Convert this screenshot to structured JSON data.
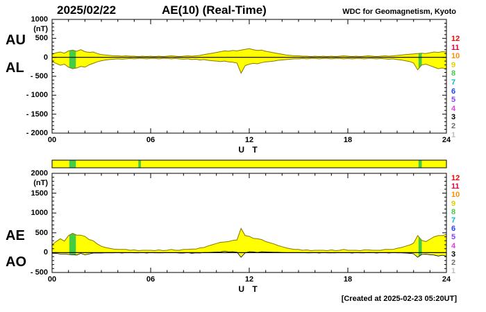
{
  "header": {
    "date": "2025/02/22",
    "title": "AE(10) (Real-Time)",
    "source": "WDC for Geomagnetism, Kyoto"
  },
  "footer": {
    "created": "[Created at 2025-02-23 05:20UT]"
  },
  "station_scale": {
    "values": [
      12,
      11,
      10,
      9,
      8,
      7,
      6,
      5,
      4,
      3,
      2,
      1
    ],
    "colors": [
      "#ff0000",
      "#e8003c",
      "#ff8c00",
      "#e0d000",
      "#44cc44",
      "#00bcd4",
      "#2040ff",
      "#8040ff",
      "#e040e0",
      "#000000",
      "#6e6e6e",
      "#bdbdbd"
    ]
  },
  "station_bar": {
    "base_color": "#ffff00",
    "segments": [
      {
        "t0": 1.05,
        "t1": 1.45,
        "color": "#44cc44"
      },
      {
        "t0": 5.25,
        "t1": 5.4,
        "color": "#44cc44"
      },
      {
        "t0": 22.3,
        "t1": 22.5,
        "color": "#44cc44"
      }
    ]
  },
  "chart_data": [
    {
      "type": "area",
      "render": "band",
      "title": "AU and AL auroral electrojet indices",
      "xlabel": "U T",
      "ylabel": "(nT)",
      "left_labels": [
        "AU",
        "AL"
      ],
      "xlim": [
        0,
        24
      ],
      "ylim": [
        -2000,
        1000
      ],
      "xticks": [
        0,
        6,
        12,
        18,
        24
      ],
      "xtick_labels": [
        "00",
        "06",
        "12",
        "18",
        "24"
      ],
      "yticks": [
        1000,
        500,
        0,
        -500,
        -1000,
        -1500,
        -2000
      ],
      "ytick_labels": [
        "1000",
        "500",
        "0",
        "- 500",
        "- 1000",
        "- 1500",
        "- 2000"
      ],
      "fill_color": "#ffff00",
      "alt_color": "#44cc44",
      "stroke_color": "#8a7500",
      "alt_ranges": [
        [
          1.05,
          1.45
        ],
        [
          22.3,
          22.5
        ]
      ],
      "x": [
        0,
        0.25,
        0.5,
        0.75,
        1,
        1.25,
        1.5,
        1.75,
        2,
        2.25,
        2.5,
        2.75,
        3,
        3.25,
        3.5,
        3.75,
        4,
        4.25,
        4.5,
        4.75,
        5,
        5.25,
        5.5,
        5.75,
        6,
        6.25,
        6.5,
        6.75,
        7,
        7.25,
        7.5,
        7.75,
        8,
        8.25,
        8.5,
        8.75,
        9,
        9.25,
        9.5,
        9.75,
        10,
        10.25,
        10.5,
        10.75,
        11,
        11.25,
        11.5,
        11.75,
        12,
        12.25,
        12.5,
        12.75,
        13,
        13.25,
        13.5,
        13.75,
        14,
        14.25,
        14.5,
        14.75,
        15,
        15.25,
        15.5,
        15.75,
        16,
        16.25,
        16.5,
        16.75,
        17,
        17.25,
        17.5,
        17.75,
        18,
        18.25,
        18.5,
        18.75,
        19,
        19.25,
        19.5,
        19.75,
        20,
        20.25,
        20.5,
        20.75,
        21,
        21.25,
        21.5,
        21.75,
        22,
        22.25,
        22.5,
        22.75,
        23,
        23.25,
        23.5,
        23.75,
        24
      ],
      "series": [
        {
          "name": "AU",
          "values": [
            80,
            120,
            140,
            110,
            170,
            190,
            160,
            200,
            150,
            130,
            140,
            100,
            70,
            60,
            50,
            40,
            40,
            30,
            40,
            30,
            30,
            20,
            30,
            20,
            30,
            20,
            30,
            20,
            30,
            40,
            30,
            20,
            30,
            40,
            30,
            40,
            50,
            70,
            90,
            110,
            130,
            150,
            170,
            160,
            180,
            170,
            190,
            210,
            230,
            200,
            180,
            190,
            160,
            140,
            120,
            100,
            80,
            60,
            50,
            40,
            40,
            30,
            30,
            20,
            30,
            20,
            30,
            20,
            30,
            20,
            30,
            40,
            30,
            20,
            30,
            20,
            30,
            40,
            30,
            20,
            30,
            40,
            30,
            40,
            50,
            60,
            70,
            80,
            90,
            100,
            110,
            100,
            120,
            140,
            130,
            150,
            140
          ]
        },
        {
          "name": "AL",
          "values": [
            -120,
            -160,
            -210,
            -180,
            -260,
            -300,
            -280,
            -240,
            -260,
            -200,
            -160,
            -120,
            -90,
            -70,
            -60,
            -50,
            -40,
            -50,
            -40,
            -30,
            -40,
            -30,
            -30,
            -40,
            -30,
            -30,
            -40,
            -30,
            -30,
            -40,
            -30,
            -40,
            -50,
            -40,
            -60,
            -50,
            -70,
            -60,
            -80,
            -90,
            -100,
            -110,
            -100,
            -120,
            -130,
            -150,
            -420,
            -220,
            -180,
            -160,
            -170,
            -140,
            -120,
            -110,
            -100,
            -80,
            -70,
            -60,
            -50,
            -40,
            -40,
            -30,
            -40,
            -30,
            -30,
            -40,
            -30,
            -30,
            -40,
            -30,
            -30,
            -40,
            -30,
            -40,
            -30,
            -30,
            -40,
            -30,
            -30,
            -40,
            -30,
            -40,
            -50,
            -40,
            -60,
            -70,
            -90,
            -110,
            -150,
            -330,
            -200,
            -180,
            -220,
            -260,
            -300,
            -280,
            -320
          ]
        }
      ]
    },
    {
      "type": "area",
      "render": "baseline",
      "title": "AE and AO auroral electrojet indices",
      "xlabel": "U T",
      "ylabel": "(nT)",
      "left_labels": [
        "AE",
        "AO"
      ],
      "xlim": [
        0,
        24
      ],
      "ylim": [
        -500,
        2000
      ],
      "xticks": [
        0,
        6,
        12,
        18,
        24
      ],
      "xtick_labels": [
        "00",
        "06",
        "12",
        "18",
        "24"
      ],
      "yticks": [
        2000,
        1500,
        1000,
        500,
        0,
        -500
      ],
      "ytick_labels": [
        "2000",
        "1500",
        "1000",
        "500",
        "0",
        "- 500"
      ],
      "fill_color": "#ffff00",
      "alt_color": "#44cc44",
      "stroke_color": "#8a7500",
      "alt_ranges": [
        [
          1.05,
          1.45
        ],
        [
          22.3,
          22.5
        ]
      ],
      "x": [
        0,
        0.25,
        0.5,
        0.75,
        1,
        1.25,
        1.5,
        1.75,
        2,
        2.25,
        2.5,
        2.75,
        3,
        3.25,
        3.5,
        3.75,
        4,
        4.25,
        4.5,
        4.75,
        5,
        5.25,
        5.5,
        5.75,
        6,
        6.25,
        6.5,
        6.75,
        7,
        7.25,
        7.5,
        7.75,
        8,
        8.25,
        8.5,
        8.75,
        9,
        9.25,
        9.5,
        9.75,
        10,
        10.25,
        10.5,
        10.75,
        11,
        11.25,
        11.5,
        11.75,
        12,
        12.25,
        12.5,
        12.75,
        13,
        13.25,
        13.5,
        13.75,
        14,
        14.25,
        14.5,
        14.75,
        15,
        15.25,
        15.5,
        15.75,
        16,
        16.25,
        16.5,
        16.75,
        17,
        17.25,
        17.5,
        17.75,
        18,
        18.25,
        18.5,
        18.75,
        19,
        19.25,
        19.5,
        19.75,
        20,
        20.25,
        20.5,
        20.75,
        21,
        21.25,
        21.5,
        21.75,
        22,
        22.25,
        22.5,
        22.75,
        23,
        23.25,
        23.5,
        23.75,
        24
      ],
      "series": [
        {
          "name": "AE",
          "values": [
            200,
            280,
            350,
            290,
            430,
            490,
            440,
            440,
            410,
            330,
            300,
            220,
            160,
            130,
            110,
            90,
            80,
            80,
            80,
            60,
            70,
            50,
            60,
            60,
            60,
            50,
            70,
            50,
            60,
            80,
            60,
            60,
            80,
            80,
            90,
            90,
            120,
            130,
            170,
            200,
            230,
            260,
            270,
            280,
            310,
            320,
            610,
            430,
            410,
            360,
            350,
            330,
            280,
            250,
            220,
            180,
            150,
            120,
            100,
            80,
            80,
            60,
            70,
            50,
            60,
            60,
            60,
            50,
            70,
            50,
            60,
            80,
            60,
            60,
            60,
            50,
            70,
            70,
            60,
            60,
            60,
            80,
            80,
            80,
            110,
            130,
            160,
            190,
            240,
            430,
            310,
            280,
            340,
            400,
            430,
            430,
            460
          ]
        },
        {
          "name": "AO",
          "values": [
            -20,
            -20,
            -35,
            -35,
            -45,
            -55,
            -60,
            -20,
            -55,
            -35,
            -10,
            -10,
            -10,
            -5,
            -5,
            -5,
            0,
            -10,
            0,
            0,
            -5,
            -5,
            0,
            -10,
            0,
            -5,
            -5,
            -5,
            0,
            0,
            0,
            -10,
            -10,
            0,
            -15,
            -5,
            -10,
            5,
            5,
            10,
            15,
            20,
            35,
            20,
            25,
            10,
            -115,
            -5,
            25,
            20,
            5,
            25,
            20,
            15,
            10,
            10,
            5,
            0,
            0,
            0,
            0,
            0,
            -5,
            -5,
            0,
            -10,
            0,
            -5,
            -5,
            -5,
            0,
            0,
            0,
            -10,
            0,
            -5,
            -5,
            5,
            0,
            -10,
            0,
            0,
            -10,
            0,
            -5,
            -5,
            -10,
            -15,
            -30,
            -115,
            -45,
            -40,
            -50,
            -60,
            -85,
            -65,
            -90
          ]
        }
      ]
    }
  ]
}
